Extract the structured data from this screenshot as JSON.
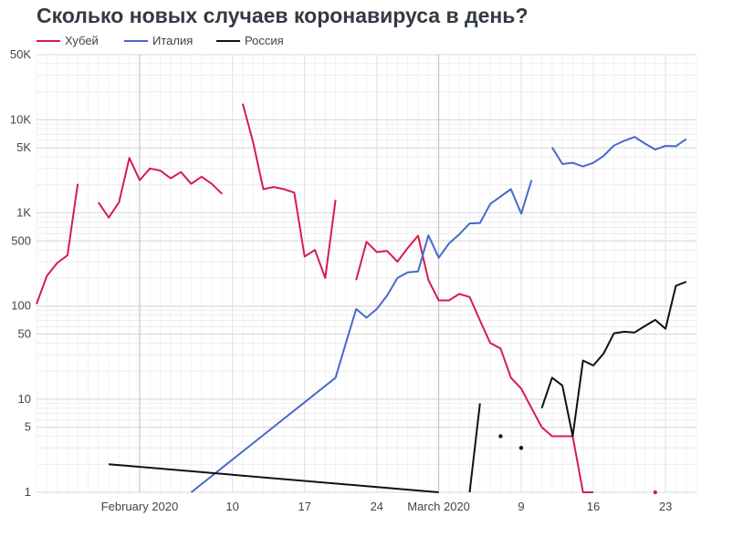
{
  "chart_data": {
    "type": "line",
    "title": "Сколько новых случаев коронавируса в день?",
    "y_scale": "log",
    "ylim": [
      1,
      50000
    ],
    "xlim": [
      "2020-01-22",
      "2020-03-26"
    ],
    "y_ticks": [
      {
        "value": 1,
        "label": "1"
      },
      {
        "value": 5,
        "label": "5"
      },
      {
        "value": 10,
        "label": "10"
      },
      {
        "value": 50,
        "label": "50"
      },
      {
        "value": 100,
        "label": "100"
      },
      {
        "value": 500,
        "label": "500"
      },
      {
        "value": 1000,
        "label": "1K"
      },
      {
        "value": 5000,
        "label": "5K"
      },
      {
        "value": 10000,
        "label": "10K"
      },
      {
        "value": 50000,
        "label": "50K"
      }
    ],
    "x_ticks": [
      {
        "date": "2020-02-01",
        "label": "February 2020"
      },
      {
        "date": "2020-02-10",
        "label": "10"
      },
      {
        "date": "2020-02-17",
        "label": "17"
      },
      {
        "date": "2020-02-24",
        "label": "24"
      },
      {
        "date": "2020-03-01",
        "label": "March 2020"
      },
      {
        "date": "2020-03-09",
        "label": "9"
      },
      {
        "date": "2020-03-16",
        "label": "16"
      },
      {
        "date": "2020-03-23",
        "label": "23"
      }
    ],
    "legend_position": "top-left",
    "grid": true,
    "series": [
      {
        "name": "Хубей",
        "color": "#d81b4e",
        "points": [
          [
            "2020-01-22",
            105
          ],
          [
            "2020-01-23",
            210
          ],
          [
            "2020-01-24",
            290
          ],
          [
            "2020-01-25",
            350
          ],
          [
            "2020-01-26",
            2050
          ],
          [
            "2020-01-27",
            null
          ],
          [
            "2020-01-28",
            1300
          ],
          [
            "2020-01-29",
            890
          ],
          [
            "2020-01-30",
            1300
          ],
          [
            "2020-01-31",
            3900
          ],
          [
            "2020-02-01",
            2250
          ],
          [
            "2020-02-02",
            3000
          ],
          [
            "2020-02-03",
            2850
          ],
          [
            "2020-02-04",
            2350
          ],
          [
            "2020-02-05",
            2750
          ],
          [
            "2020-02-06",
            2050
          ],
          [
            "2020-02-07",
            2450
          ],
          [
            "2020-02-08",
            2050
          ],
          [
            "2020-02-09",
            1600
          ],
          [
            "2020-02-10",
            null
          ],
          [
            "2020-02-11",
            14900
          ],
          [
            "2020-02-12",
            5800
          ],
          [
            "2020-02-13",
            1800
          ],
          [
            "2020-02-14",
            1900
          ],
          [
            "2020-02-15",
            1800
          ],
          [
            "2020-02-16",
            1650
          ],
          [
            "2020-02-17",
            340
          ],
          [
            "2020-02-18",
            400
          ],
          [
            "2020-02-19",
            200
          ],
          [
            "2020-02-20",
            1380
          ],
          [
            "2020-02-21",
            null
          ],
          [
            "2020-02-22",
            190
          ],
          [
            "2020-02-23",
            490
          ],
          [
            "2020-02-24",
            380
          ],
          [
            "2020-02-25",
            390
          ],
          [
            "2020-02-26",
            300
          ],
          [
            "2020-02-27",
            420
          ],
          [
            "2020-02-28",
            570
          ],
          [
            "2020-02-29",
            190
          ],
          [
            "2020-03-01",
            115
          ],
          [
            "2020-03-02",
            115
          ],
          [
            "2020-03-03",
            135
          ],
          [
            "2020-03-04",
            125
          ],
          [
            "2020-03-05",
            70
          ],
          [
            "2020-03-06",
            40
          ],
          [
            "2020-03-07",
            35
          ],
          [
            "2020-03-08",
            17
          ],
          [
            "2020-03-09",
            13
          ],
          [
            "2020-03-10",
            8
          ],
          [
            "2020-03-11",
            5
          ],
          [
            "2020-03-12",
            4
          ],
          [
            "2020-03-13",
            4
          ],
          [
            "2020-03-14",
            4
          ],
          [
            "2020-03-15",
            1
          ],
          [
            "2020-03-16",
            1
          ],
          [
            "2020-03-17",
            null
          ],
          [
            "2020-03-22",
            1
          ]
        ]
      },
      {
        "name": "Италия",
        "color": "#4a68cc",
        "points": [
          [
            "2020-02-06",
            1
          ],
          [
            "2020-02-20",
            17
          ],
          [
            "2020-02-21",
            40
          ],
          [
            "2020-02-22",
            93
          ],
          [
            "2020-02-23",
            75
          ],
          [
            "2020-02-24",
            93
          ],
          [
            "2020-02-25",
            130
          ],
          [
            "2020-02-26",
            200
          ],
          [
            "2020-02-27",
            230
          ],
          [
            "2020-02-28",
            235
          ],
          [
            "2020-02-29",
            575
          ],
          [
            "2020-03-01",
            330
          ],
          [
            "2020-03-02",
            470
          ],
          [
            "2020-03-03",
            590
          ],
          [
            "2020-03-04",
            770
          ],
          [
            "2020-03-05",
            780
          ],
          [
            "2020-03-06",
            1250
          ],
          [
            "2020-03-07",
            1500
          ],
          [
            "2020-03-08",
            1800
          ],
          [
            "2020-03-09",
            980
          ],
          [
            "2020-03-10",
            2250
          ],
          [
            "2020-03-11",
            null
          ],
          [
            "2020-03-12",
            5050
          ],
          [
            "2020-03-13",
            3350
          ],
          [
            "2020-03-14",
            3450
          ],
          [
            "2020-03-15",
            3150
          ],
          [
            "2020-03-16",
            3450
          ],
          [
            "2020-03-17",
            4100
          ],
          [
            "2020-03-18",
            5300
          ],
          [
            "2020-03-19",
            5950
          ],
          [
            "2020-03-20",
            6550
          ],
          [
            "2020-03-21",
            5550
          ],
          [
            "2020-03-22",
            4800
          ],
          [
            "2020-03-23",
            5250
          ],
          [
            "2020-03-24",
            5200
          ],
          [
            "2020-03-25",
            6200
          ]
        ]
      },
      {
        "name": "Россия",
        "color": "#111111",
        "points": [
          [
            "2020-01-29",
            2
          ],
          [
            "2020-03-01",
            1
          ],
          [
            "2020-03-02",
            null
          ],
          [
            "2020-03-04",
            1
          ],
          [
            "2020-03-05",
            9
          ],
          [
            "2020-03-06",
            null
          ],
          [
            "2020-03-07",
            4
          ],
          [
            "2020-03-08",
            null
          ],
          [
            "2020-03-09",
            3
          ],
          [
            "2020-03-10",
            null
          ],
          [
            "2020-03-11",
            8
          ],
          [
            "2020-03-12",
            17
          ],
          [
            "2020-03-13",
            14
          ],
          [
            "2020-03-14",
            4
          ],
          [
            "2020-03-15",
            26
          ],
          [
            "2020-03-16",
            23
          ],
          [
            "2020-03-17",
            31
          ],
          [
            "2020-03-18",
            51
          ],
          [
            "2020-03-19",
            53
          ],
          [
            "2020-03-20",
            52
          ],
          [
            "2020-03-21",
            61
          ],
          [
            "2020-03-22",
            71
          ],
          [
            "2020-03-23",
            57
          ],
          [
            "2020-03-24",
            165
          ],
          [
            "2020-03-25",
            182
          ]
        ]
      }
    ]
  }
}
